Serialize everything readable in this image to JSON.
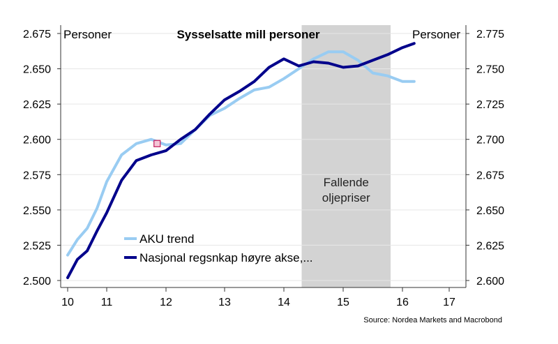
{
  "chart_data": {
    "type": "line",
    "title": "Sysselsatte mill personer",
    "left_axis_label": "Personer",
    "right_axis_label": "Personer",
    "source": "Source: Nordea Markets and Macrobond",
    "y_left": {
      "min": 2.5,
      "max": 2.675,
      "ticks": [
        "2.500",
        "2.525",
        "2.550",
        "2.575",
        "2.600",
        "2.625",
        "2.650",
        "2.675"
      ]
    },
    "y_right": {
      "min": 2.6,
      "max": 2.775,
      "ticks": [
        "2.600",
        "2.625",
        "2.650",
        "2.675",
        "2.700",
        "2.725",
        "2.750",
        "2.775"
      ]
    },
    "x_axis": {
      "min": 10,
      "max": 17.3,
      "ticks": [
        "10",
        "11",
        "12",
        "13",
        "14",
        "15",
        "16",
        "17"
      ]
    },
    "shaded_region": {
      "from": 14.3,
      "to": 15.8,
      "label_lines": [
        "Fallende",
        "oljepriser"
      ]
    },
    "grid": "horizontal",
    "legend_position": "bottom-left",
    "series": [
      {
        "name": "AKU trend",
        "axis": "left",
        "color": "#99ccf2",
        "x": [
          10.0,
          10.25,
          10.5,
          10.75,
          11.0,
          11.25,
          11.5,
          11.75,
          12.0,
          12.25,
          12.5,
          12.75,
          13.0,
          13.25,
          13.5,
          13.75,
          14.0,
          14.25,
          14.5,
          14.75,
          15.0,
          15.25,
          15.5,
          15.75,
          16.0,
          16.25,
          16.5,
          16.75
        ],
        "values": [
          2.518,
          2.529,
          2.537,
          2.551,
          2.57,
          2.589,
          2.597,
          2.6,
          2.596,
          2.597,
          2.607,
          2.617,
          2.622,
          2.629,
          2.635,
          2.637,
          2.643,
          2.65,
          2.657,
          2.662,
          2.662,
          2.656,
          2.647,
          2.645,
          2.641,
          2.641,
          null,
          null
        ]
      },
      {
        "name": "Nasjonal regsnkap høyre akse,...",
        "axis": "right",
        "color": "#00008b",
        "x": [
          10.0,
          10.25,
          10.5,
          10.75,
          11.0,
          11.25,
          11.5,
          11.75,
          12.0,
          12.25,
          12.5,
          12.75,
          13.0,
          13.25,
          13.5,
          13.75,
          14.0,
          14.25,
          14.5,
          14.75,
          15.0,
          15.25,
          15.5,
          15.75,
          16.0,
          16.25,
          16.5,
          16.75
        ],
        "values": [
          2.602,
          2.615,
          2.621,
          2.635,
          2.648,
          2.671,
          2.685,
          2.689,
          2.692,
          2.7,
          2.707,
          2.718,
          2.728,
          2.734,
          2.741,
          2.751,
          2.757,
          2.752,
          2.755,
          2.754,
          2.751,
          2.752,
          2.756,
          2.76,
          2.765,
          2.768,
          null,
          null
        ]
      }
    ],
    "marker": {
      "x": 11.85,
      "y": 2.597,
      "axis": "left",
      "shape": "square",
      "color": "#c2185b"
    }
  }
}
